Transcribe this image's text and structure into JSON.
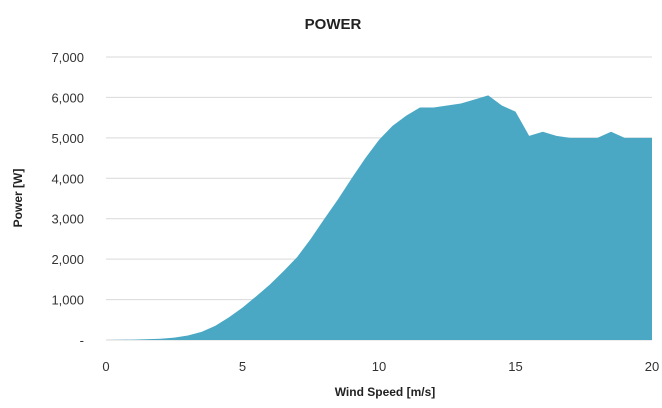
{
  "chart_data": {
    "type": "area",
    "title": "POWER",
    "xlabel": "Wind Speed [m/s]",
    "ylabel": "Power [W]",
    "xlim": [
      0,
      20
    ],
    "ylim": [
      0,
      7000
    ],
    "x_ticks": [
      0,
      5,
      10,
      15,
      20
    ],
    "x_tick_labels": [
      "0",
      "5",
      "10",
      "15",
      "20"
    ],
    "y_ticks": [
      0,
      1000,
      2000,
      3000,
      4000,
      5000,
      6000,
      7000
    ],
    "y_tick_labels": [
      "-",
      "1,000",
      "2,000",
      "3,000",
      "4,000",
      "5,000",
      "6,000",
      "7,000"
    ],
    "grid": true,
    "legend": "none",
    "colors": {
      "fill": "#4aa8c4",
      "grid": "#d9d9d9"
    },
    "series": [
      {
        "x": [
          0,
          1,
          2,
          2.5,
          3,
          3.5,
          4,
          4.5,
          5,
          5.5,
          6,
          6.5,
          7,
          7.5,
          8,
          8.5,
          9,
          9.5,
          10,
          10.5,
          11,
          11.5,
          12,
          12.5,
          13,
          13.5,
          14,
          14.5,
          15,
          15.5,
          16,
          16.5,
          17,
          17.5,
          18,
          18.5,
          19,
          19.5,
          20
        ],
        "y": [
          0,
          10,
          30,
          60,
          110,
          200,
          350,
          560,
          800,
          1080,
          1370,
          1700,
          2050,
          2500,
          3000,
          3480,
          4000,
          4500,
          4950,
          5300,
          5550,
          5750,
          5750,
          5800,
          5850,
          5950,
          6050,
          5800,
          5650,
          5050,
          5150,
          5050,
          5000,
          5000,
          5000,
          5150,
          5000,
          5000,
          5000
        ]
      }
    ]
  }
}
